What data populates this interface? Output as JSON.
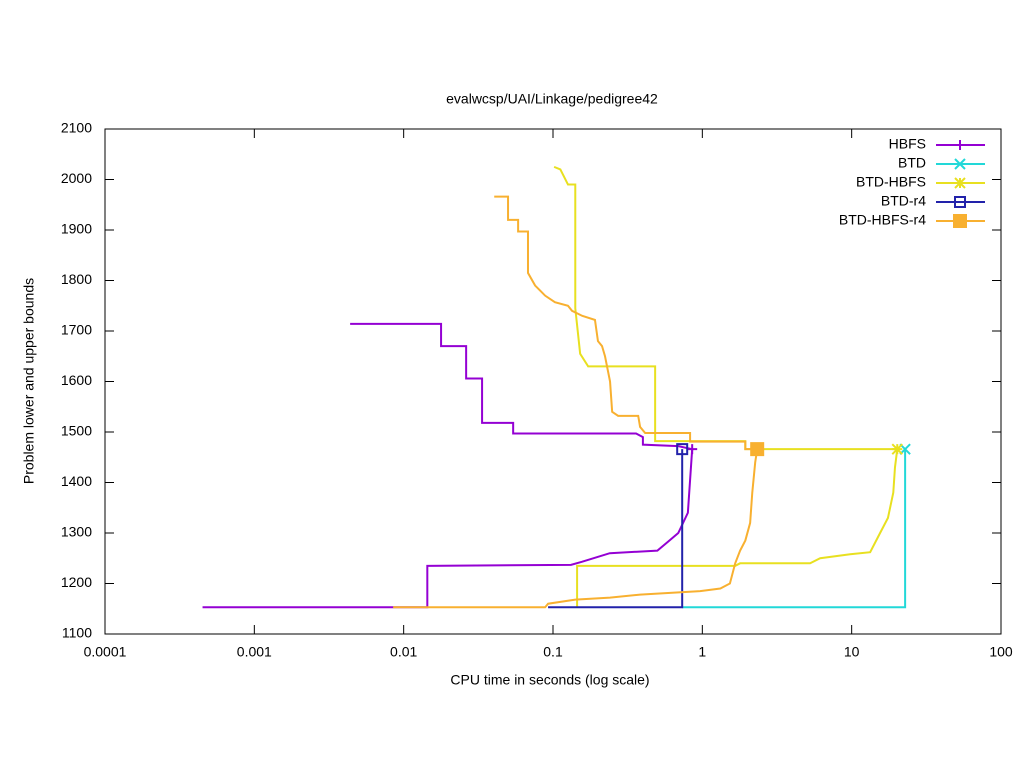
{
  "chart_data": {
    "type": "line",
    "title": "evalwcsp/UAI/Linkage/pedigree42",
    "x_label": "CPU time in seconds (log scale)",
    "y_label": "Problem lower and upper bounds",
    "xscale": "log",
    "xlim": [
      0.0001,
      100
    ],
    "xticks": [
      0.0001,
      0.001,
      0.01,
      0.1,
      1,
      10,
      100
    ],
    "ylim": [
      1100,
      2100
    ],
    "yticks": [
      1100,
      1200,
      1300,
      1400,
      1500,
      1600,
      1700,
      1800,
      1900,
      2000,
      2100
    ],
    "legend": "top-right",
    "series": [
      {
        "name": "HBFS",
        "color": "#9400d3",
        "marker": "plus",
        "lower": {
          "x": [
            0.00045,
            0.0144,
            0.0144,
            0.132,
            0.156,
            0.24,
            0.5,
            0.59,
            0.69,
            0.8,
            0.855
          ],
          "values": [
            1153,
            1153,
            1235,
            1237,
            1243,
            1260,
            1265,
            1283,
            1300,
            1340,
            1466
          ]
        },
        "upper": {
          "x": [
            0.00438,
            0.0178,
            0.0178,
            0.0262,
            0.0262,
            0.0335,
            0.0335,
            0.0541,
            0.0541,
            0.36,
            0.4,
            0.4,
            0.69,
            0.855
          ],
          "values": [
            1714,
            1714,
            1670,
            1670,
            1606,
            1606,
            1518,
            1518,
            1497,
            1497,
            1490,
            1475,
            1472,
            1466
          ]
        }
      },
      {
        "name": "BTD",
        "color": "#22d8d8",
        "marker": "cross",
        "lower": {
          "x": [
            0.733,
            22.8,
            22.8
          ],
          "values": [
            1153,
            1153,
            1466
          ]
        },
        "upper": {
          "x": [
            22.8
          ],
          "values": [
            1466
          ]
        }
      },
      {
        "name": "BTD-HBFS",
        "color": "#e8e020",
        "marker": "star",
        "lower": {
          "x": [
            0.145,
            0.145,
            1.66,
            1.79,
            5.27,
            6.15,
            9.77,
            13.3,
            15.5,
            17.5,
            19.0,
            19.5,
            20.2
          ],
          "values": [
            1153,
            1235,
            1235,
            1240,
            1240,
            1250,
            1258,
            1262,
            1300,
            1330,
            1380,
            1430,
            1466
          ]
        },
        "upper": {
          "x": [
            0.1017,
            0.112,
            0.126,
            0.141,
            0.141,
            0.152,
            0.172,
            0.483,
            0.483,
            1.94,
            1.94,
            20.2
          ],
          "values": [
            2025,
            2020,
            1990,
            1990,
            1745,
            1655,
            1630,
            1630,
            1482,
            1482,
            1466,
            1466
          ]
        }
      },
      {
        "name": "BTD-r4",
        "color": "#2222aa",
        "marker": "square",
        "lower": {
          "x": [
            0.0927,
            0.733,
            0.733
          ],
          "values": [
            1153,
            1153,
            1466
          ]
        },
        "upper": {
          "x": [
            0.733
          ],
          "values": [
            1466
          ]
        }
      },
      {
        "name": "BTD-HBFS-r4",
        "color": "#f8b030",
        "marker": "filled-square",
        "lower": {
          "x": [
            0.0085,
            0.0886,
            0.0927,
            0.141,
            0.241,
            0.383,
            0.967,
            1.32,
            1.53,
            1.66,
            1.79,
            1.94,
            2.09,
            2.16,
            2.26,
            2.33
          ],
          "values": [
            1153,
            1153,
            1160,
            1168,
            1172,
            1178,
            1185,
            1190,
            1200,
            1240,
            1265,
            1285,
            1320,
            1380,
            1440,
            1466
          ]
        },
        "upper": {
          "x": [
            0.0404,
            0.05,
            0.05,
            0.0584,
            0.0584,
            0.068,
            0.068,
            0.0759,
            0.082,
            0.0886,
            0.103,
            0.126,
            0.134,
            0.157,
            0.191,
            0.2,
            0.213,
            0.223,
            0.241,
            0.249,
            0.273,
            0.372,
            0.383,
            0.414,
            0.828,
            0.828,
            1.94,
            1.94,
            2.33
          ],
          "values": [
            1966,
            1966,
            1920,
            1920,
            1897,
            1897,
            1815,
            1790,
            1780,
            1770,
            1757,
            1750,
            1740,
            1730,
            1722,
            1680,
            1670,
            1650,
            1600,
            1540,
            1532,
            1532,
            1510,
            1498,
            1498,
            1481,
            1481,
            1466,
            1466
          ]
        }
      }
    ]
  }
}
